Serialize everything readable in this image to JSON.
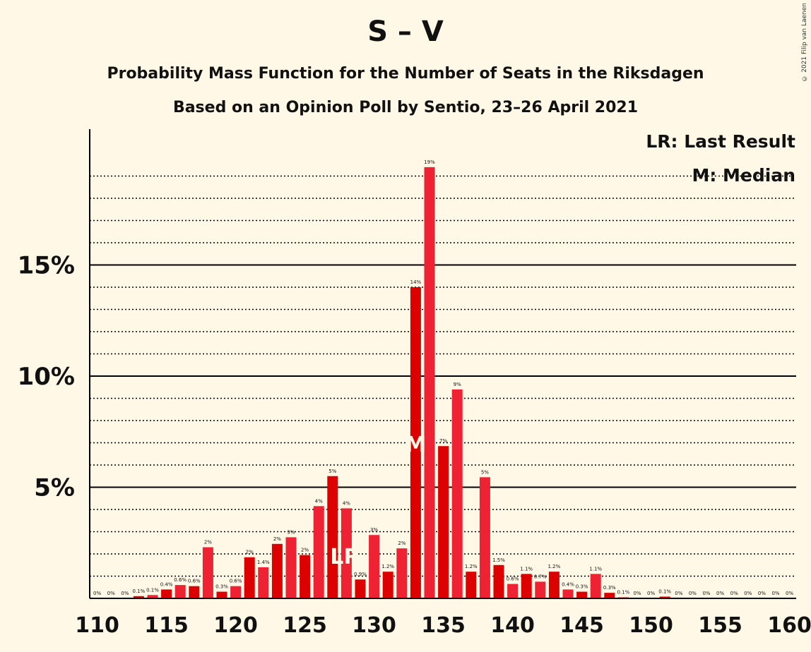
{
  "title": "S – V",
  "subtitle_line1": "Probability Mass Function for the Number of Seats in the Riksdagen",
  "subtitle_line2": "Based on an Opinion Poll by Sentio, 23–26 April 2021",
  "copyright": "© 2021 Filip van Laenen",
  "legend": {
    "last_result": "LR: Last Result",
    "median": "M: Median"
  },
  "colors": {
    "bar_even": "#ee2233",
    "bar_odd": "#dd0000",
    "background": "#fff8e6"
  },
  "chart_data": {
    "type": "bar",
    "xlabel": "",
    "ylabel": "",
    "xlim": [
      110,
      160
    ],
    "ylim": [
      0,
      21
    ],
    "x_ticks": [
      "110",
      "115",
      "120",
      "125",
      "130",
      "135",
      "140",
      "145",
      "150",
      "155",
      "160"
    ],
    "y_ticks": [
      {
        "value": 5,
        "label": "5%"
      },
      {
        "value": 10,
        "label": "10%"
      },
      {
        "value": 15,
        "label": "15%"
      }
    ],
    "grid": "dotted every 1%, solid every 5%",
    "last_result_seat": 128,
    "last_result_marker": "LR",
    "median_seat": 133,
    "median_marker": "M",
    "bars": [
      {
        "seat": 110,
        "value": 0,
        "label": "0%"
      },
      {
        "seat": 111,
        "value": 0,
        "label": "0%"
      },
      {
        "seat": 112,
        "value": 0,
        "label": "0%"
      },
      {
        "seat": 113,
        "value": 0.1,
        "label": "0.1%"
      },
      {
        "seat": 114,
        "value": 0.15,
        "label": "0.1%"
      },
      {
        "seat": 115,
        "value": 0.4,
        "label": "0.4%"
      },
      {
        "seat": 116,
        "value": 0.6,
        "label": "0.6%"
      },
      {
        "seat": 117,
        "value": 0.55,
        "label": "0.6%"
      },
      {
        "seat": 118,
        "value": 2.3,
        "label": "2%"
      },
      {
        "seat": 119,
        "value": 0.3,
        "label": "0.3%"
      },
      {
        "seat": 120,
        "value": 0.55,
        "label": "0.6%"
      },
      {
        "seat": 121,
        "value": 1.85,
        "label": "2%"
      },
      {
        "seat": 122,
        "value": 1.4,
        "label": "1.4%"
      },
      {
        "seat": 123,
        "value": 2.45,
        "label": "2%"
      },
      {
        "seat": 124,
        "value": 2.75,
        "label": "3%"
      },
      {
        "seat": 125,
        "value": 1.95,
        "label": "2%"
      },
      {
        "seat": 126,
        "value": 4.15,
        "label": "4%"
      },
      {
        "seat": 127,
        "value": 5.5,
        "label": "5%"
      },
      {
        "seat": 128,
        "value": 4.05,
        "label": "4%"
      },
      {
        "seat": 129,
        "value": 0.85,
        "label": "0.9%"
      },
      {
        "seat": 130,
        "value": 2.85,
        "label": "3%"
      },
      {
        "seat": 131,
        "value": 1.2,
        "label": "1.2%"
      },
      {
        "seat": 132,
        "value": 2.25,
        "label": "2%"
      },
      {
        "seat": 133,
        "value": 14,
        "label": "14%"
      },
      {
        "seat": 134,
        "value": 19.4,
        "label": "19%"
      },
      {
        "seat": 135,
        "value": 6.85,
        "label": "7%"
      },
      {
        "seat": 136,
        "value": 9.4,
        "label": "9%"
      },
      {
        "seat": 137,
        "value": 1.2,
        "label": "1.2%"
      },
      {
        "seat": 138,
        "value": 5.45,
        "label": "5%"
      },
      {
        "seat": 139,
        "value": 1.5,
        "label": "1.5%"
      },
      {
        "seat": 140,
        "value": 0.65,
        "label": "0.6%"
      },
      {
        "seat": 141,
        "value": 1.1,
        "label": "1.1%"
      },
      {
        "seat": 142,
        "value": 0.75,
        "label": "0.7%"
      },
      {
        "seat": 143,
        "value": 1.2,
        "label": "1.2%"
      },
      {
        "seat": 144,
        "value": 0.4,
        "label": "0.4%"
      },
      {
        "seat": 145,
        "value": 0.3,
        "label": "0.3%"
      },
      {
        "seat": 146,
        "value": 1.1,
        "label": "1.1%"
      },
      {
        "seat": 147,
        "value": 0.25,
        "label": "0.3%"
      },
      {
        "seat": 148,
        "value": 0.05,
        "label": "0.1%"
      },
      {
        "seat": 149,
        "value": 0,
        "label": "0%"
      },
      {
        "seat": 150,
        "value": 0,
        "label": "0%"
      },
      {
        "seat": 151,
        "value": 0.08,
        "label": "0.1%"
      },
      {
        "seat": 152,
        "value": 0,
        "label": "0%"
      },
      {
        "seat": 153,
        "value": 0,
        "label": "0%"
      },
      {
        "seat": 154,
        "value": 0,
        "label": "0%"
      },
      {
        "seat": 155,
        "value": 0,
        "label": "0%"
      },
      {
        "seat": 156,
        "value": 0,
        "label": "0%"
      },
      {
        "seat": 157,
        "value": 0,
        "label": "0%"
      },
      {
        "seat": 158,
        "value": 0,
        "label": "0%"
      },
      {
        "seat": 159,
        "value": 0,
        "label": "0%"
      },
      {
        "seat": 160,
        "value": 0,
        "label": "0%"
      }
    ]
  }
}
